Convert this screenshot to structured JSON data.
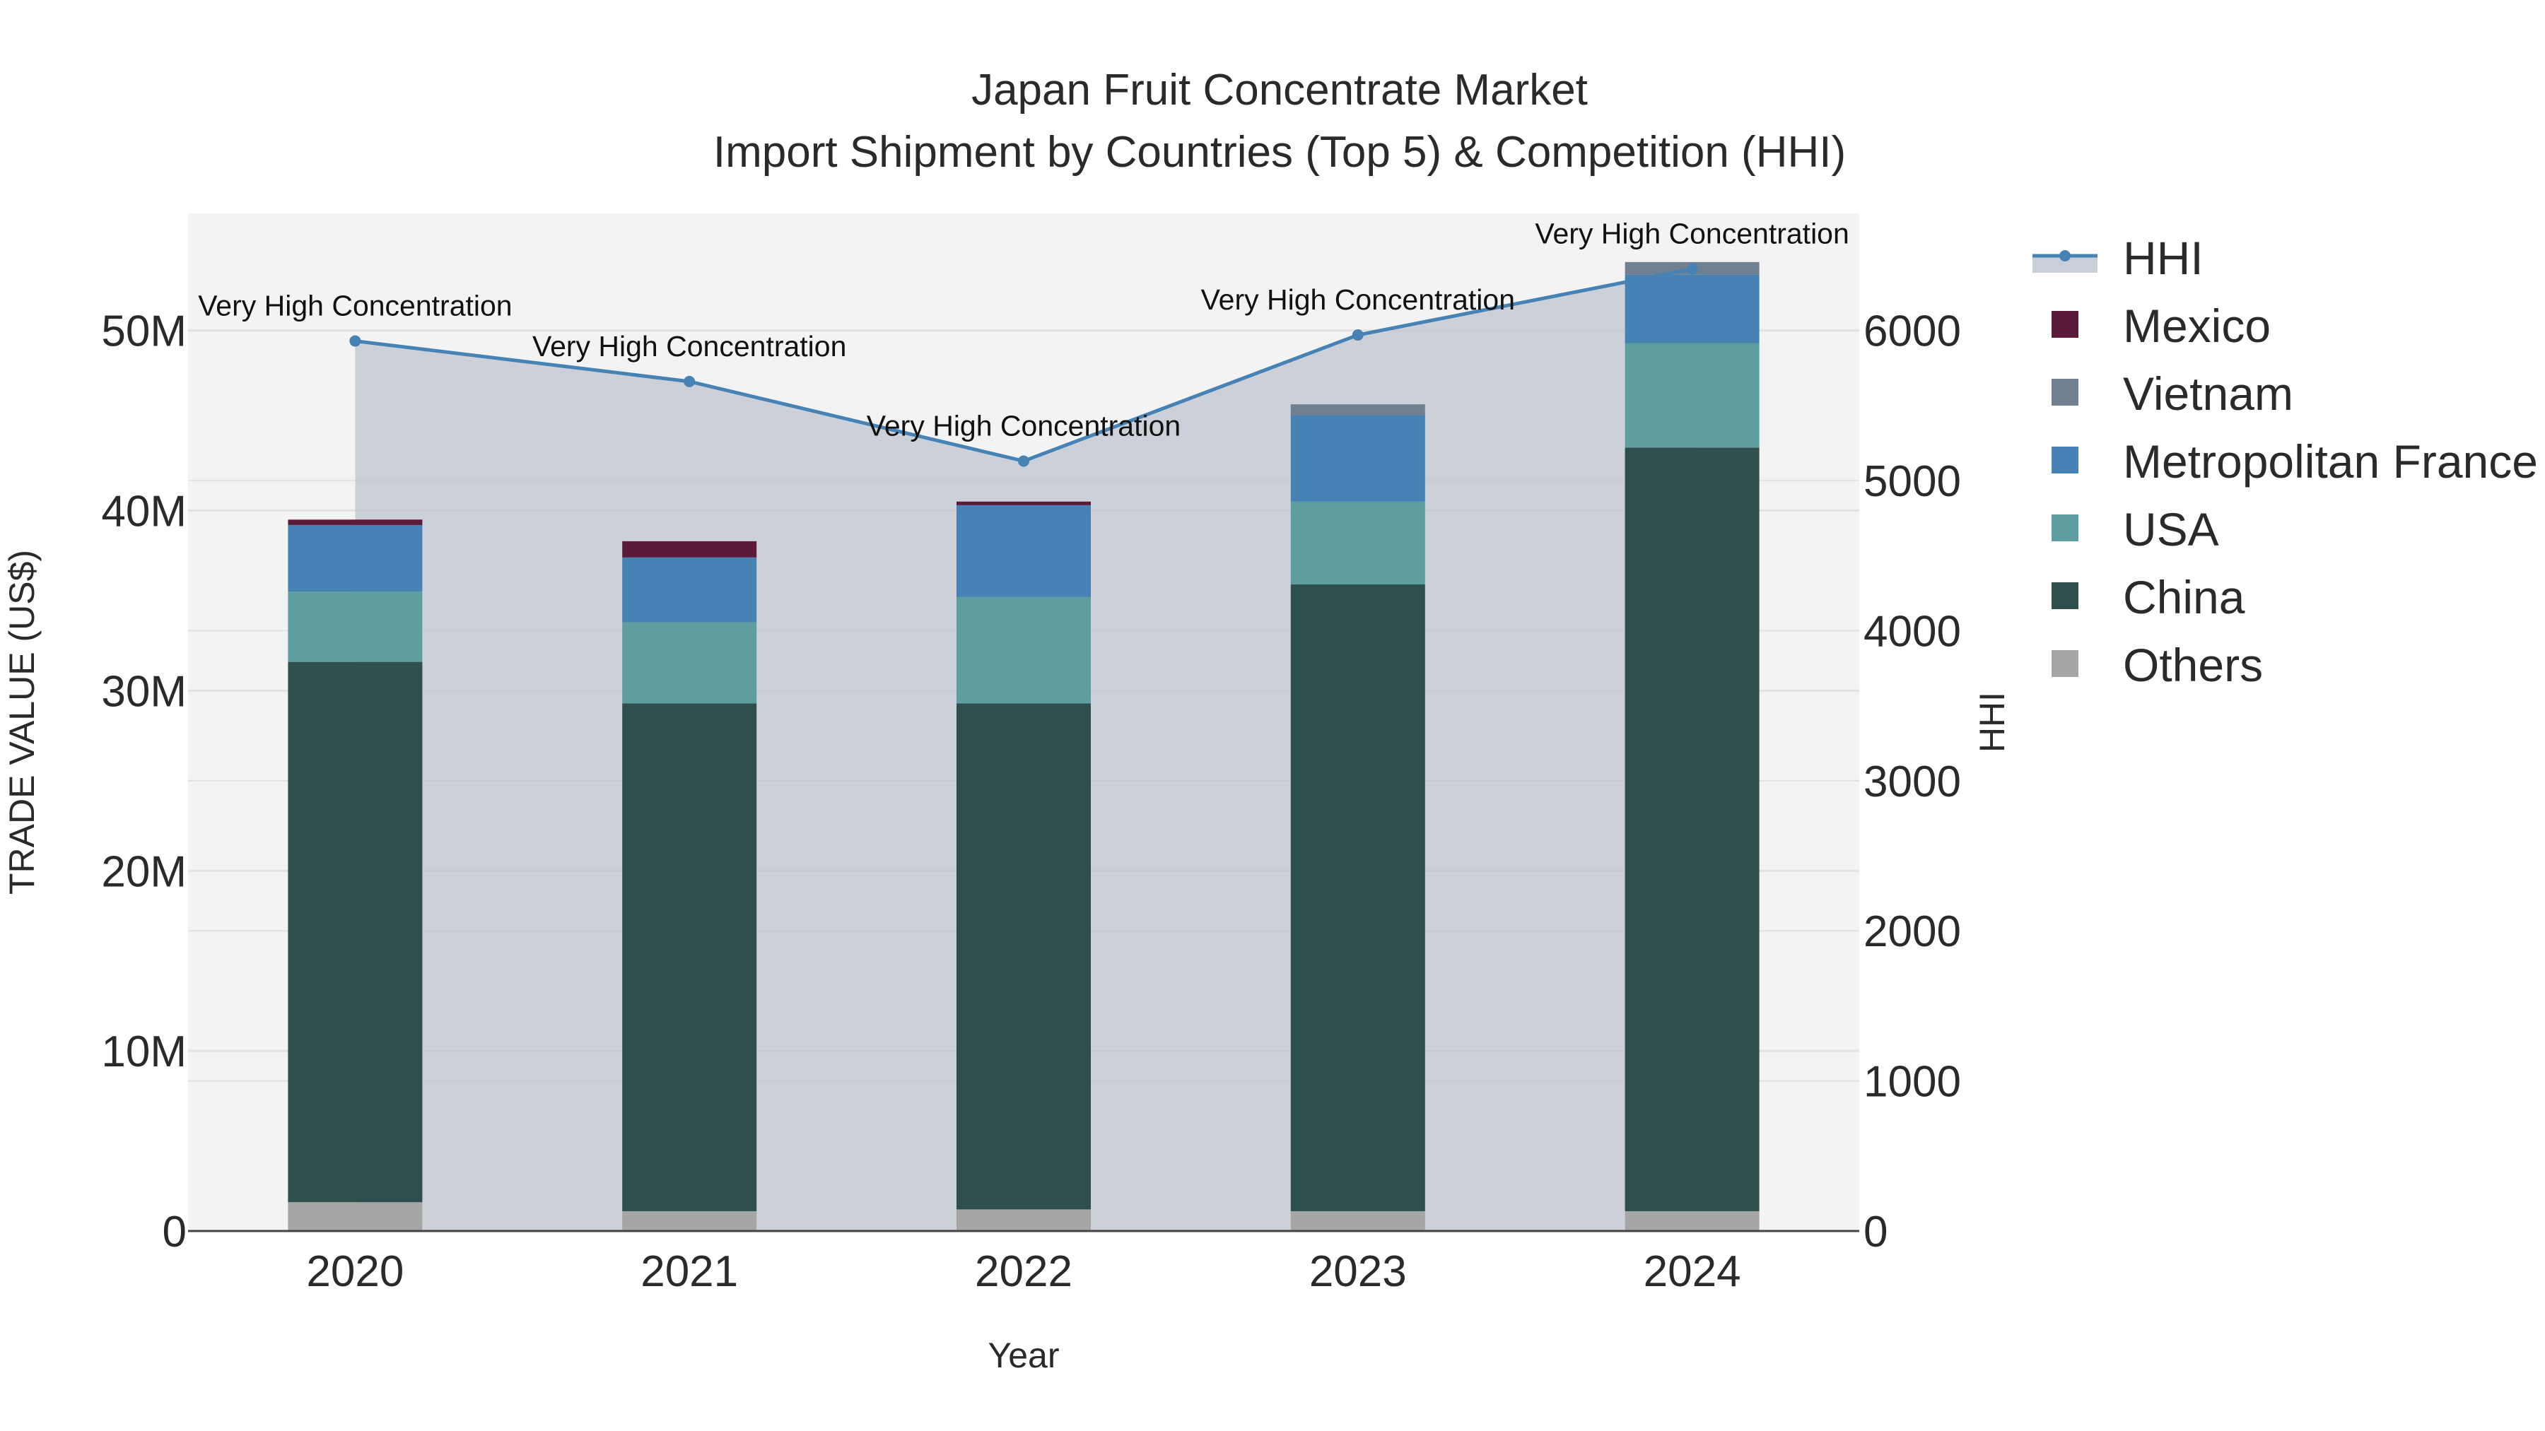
{
  "chart_data": {
    "type": "bar",
    "title_line1": "Japan Fruit Concentrate Market",
    "title_line2": "Import Shipment by Countries (Top 5) & Competition (HHI)",
    "xlabel": "Year",
    "ylabel": "TRADE VALUE (US$)",
    "y2label": "HHI",
    "categories": [
      "2020",
      "2021",
      "2022",
      "2023",
      "2024"
    ],
    "ylim": [
      0,
      56500000
    ],
    "y2lim": [
      0,
      6780
    ],
    "yticks": [
      {
        "value": 0,
        "label": "0"
      },
      {
        "value": 10000000,
        "label": "10M"
      },
      {
        "value": 20000000,
        "label": "20M"
      },
      {
        "value": 30000000,
        "label": "30M"
      },
      {
        "value": 40000000,
        "label": "40M"
      },
      {
        "value": 50000000,
        "label": "50M"
      }
    ],
    "y2ticks": [
      {
        "value": 0,
        "label": "0"
      },
      {
        "value": 1000,
        "label": "1000"
      },
      {
        "value": 2000,
        "label": "2000"
      },
      {
        "value": 3000,
        "label": "3000"
      },
      {
        "value": 4000,
        "label": "4000"
      },
      {
        "value": 5000,
        "label": "5000"
      },
      {
        "value": 6000,
        "label": "6000"
      }
    ],
    "series": [
      {
        "name": "Others",
        "color": "#a6a6a6",
        "values": [
          1600000,
          1100000,
          1200000,
          1100000,
          1100000
        ]
      },
      {
        "name": "China",
        "color": "#2f4f4f",
        "values": [
          30000000,
          28200000,
          28100000,
          34800000,
          42400000
        ]
      },
      {
        "name": "USA",
        "color": "#5f9ea0",
        "values": [
          3900000,
          4500000,
          5900000,
          4600000,
          5800000
        ]
      },
      {
        "name": "Metropolitan France",
        "color": "#4682b4",
        "values": [
          3700000,
          3600000,
          5100000,
          4800000,
          3800000
        ]
      },
      {
        "name": "Vietnam",
        "color": "#708090",
        "values": [
          0,
          0,
          0,
          600000,
          700000
        ]
      },
      {
        "name": "Mexico",
        "color": "#5c1a3b",
        "values": [
          300000,
          900000,
          200000,
          0,
          0
        ]
      }
    ],
    "hhi": {
      "name": "HHI",
      "color": "#4682b4",
      "values": [
        5930,
        5660,
        5130,
        5970,
        6410
      ],
      "annotations": [
        "Very High Concentration",
        "Very High Concentration",
        "Very High Concentration",
        "Very High Concentration",
        "Very High Concentration"
      ]
    },
    "legend": [
      "HHI",
      "Mexico",
      "Vietnam",
      "Metropolitan France",
      "USA",
      "China",
      "Others"
    ],
    "legend_position": "right"
  }
}
